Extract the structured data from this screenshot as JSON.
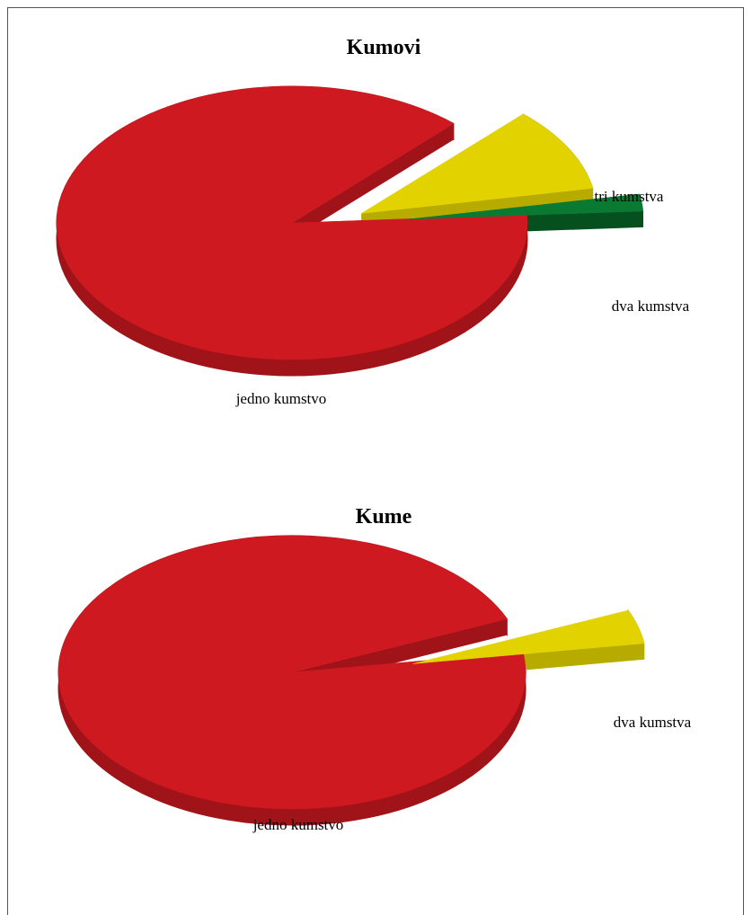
{
  "chart_data": [
    {
      "type": "pie",
      "title": "Kumovi",
      "slices": [
        {
          "label": "jedno kumstvo",
          "value": 88.0,
          "color": "#cf1920",
          "side": "#a01419",
          "exploded": false
        },
        {
          "label": "dva kumstva",
          "value": 10.0,
          "color": "#e2d300",
          "side": "#b8ab00",
          "exploded": true
        },
        {
          "label": "tri kumstva",
          "value": 2.0,
          "color": "#0a7a32",
          "side": "#06501f",
          "exploded": true
        }
      ]
    },
    {
      "type": "pie",
      "title": "Kume",
      "slices": [
        {
          "label": "jedno kumstvo",
          "value": 96.0,
          "color": "#cf1920",
          "side": "#a01419",
          "exploded": false
        },
        {
          "label": "dva kumstva",
          "value": 4.0,
          "color": "#e2d300",
          "side": "#b8ab00",
          "exploded": true
        }
      ]
    }
  ]
}
